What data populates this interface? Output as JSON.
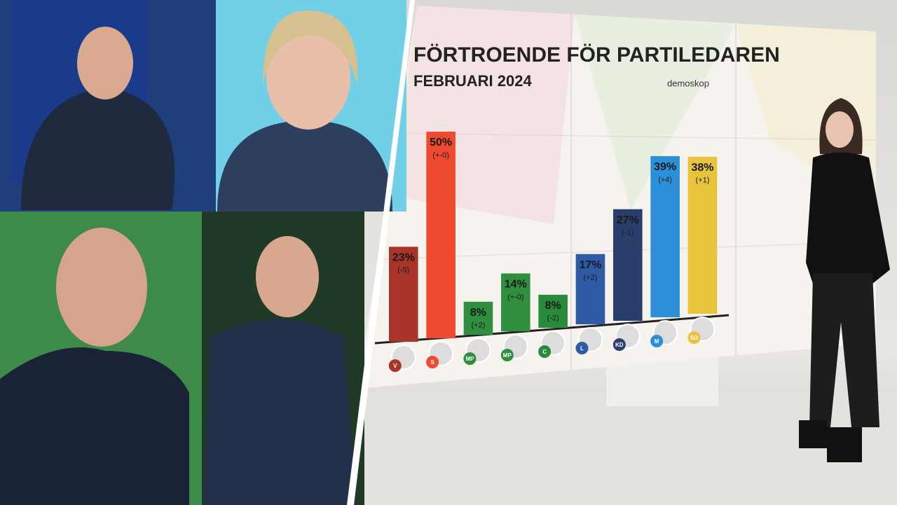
{
  "chart_data": {
    "type": "bar",
    "title": "FÖRTROENDE FÖR PARTILEDAREN",
    "subtitle": "FEBRUARI 2024",
    "source": "demoskop",
    "categories": [
      "V",
      "S",
      "MP",
      "MP",
      "C",
      "L",
      "KD",
      "M",
      "SD"
    ],
    "values": [
      23,
      50,
      8,
      14,
      8,
      17,
      27,
      39,
      38
    ],
    "value_labels": [
      "23%",
      "50%",
      "8%",
      "14%",
      "8%",
      "17%",
      "27%",
      "39%",
      "38%"
    ],
    "changes": [
      "(-5)",
      "(+-0)",
      "(+2)",
      "(+-0)",
      "(-2)",
      "(+2)",
      "(-1)",
      "(+4)",
      "(+1)"
    ],
    "colors": [
      "#a8342a",
      "#ee4a2f",
      "#2f8f3f",
      "#2f8f3f",
      "#2a8a3c",
      "#2e5aa6",
      "#2a3e6c",
      "#2b8fd9",
      "#e8c33c"
    ]
  }
}
